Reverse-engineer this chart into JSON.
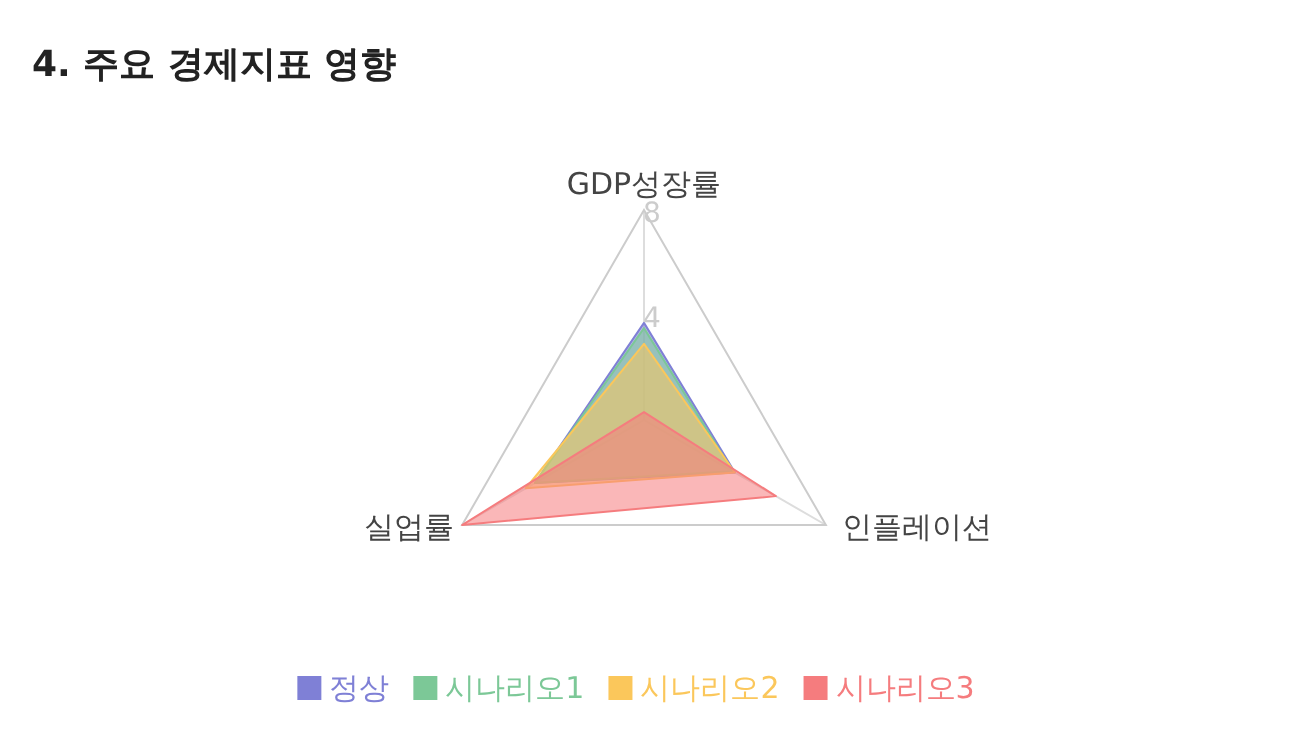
{
  "chart_data": {
    "type": "radar",
    "title": "4. 주요 경제지표 영향",
    "categories": [
      "GDP성장률",
      "인플레이션",
      "실업률"
    ],
    "ylim": [
      0,
      8
    ],
    "yticks": [
      4,
      8
    ],
    "legend": "bottom",
    "series": [
      {
        "name": "정상",
        "color": "#7f80d6",
        "values": [
          3.7,
          4.0,
          4.8
        ]
      },
      {
        "name": "시나리오1",
        "color": "#7cc897",
        "values": [
          3.5,
          3.9,
          4.8
        ]
      },
      {
        "name": "시나리오2",
        "color": "#fbc75b",
        "values": [
          2.9,
          4.0,
          5.2
        ]
      },
      {
        "name": "시나리오3",
        "color": "#f57c7e",
        "values": [
          0.3,
          5.8,
          8
        ]
      }
    ]
  }
}
